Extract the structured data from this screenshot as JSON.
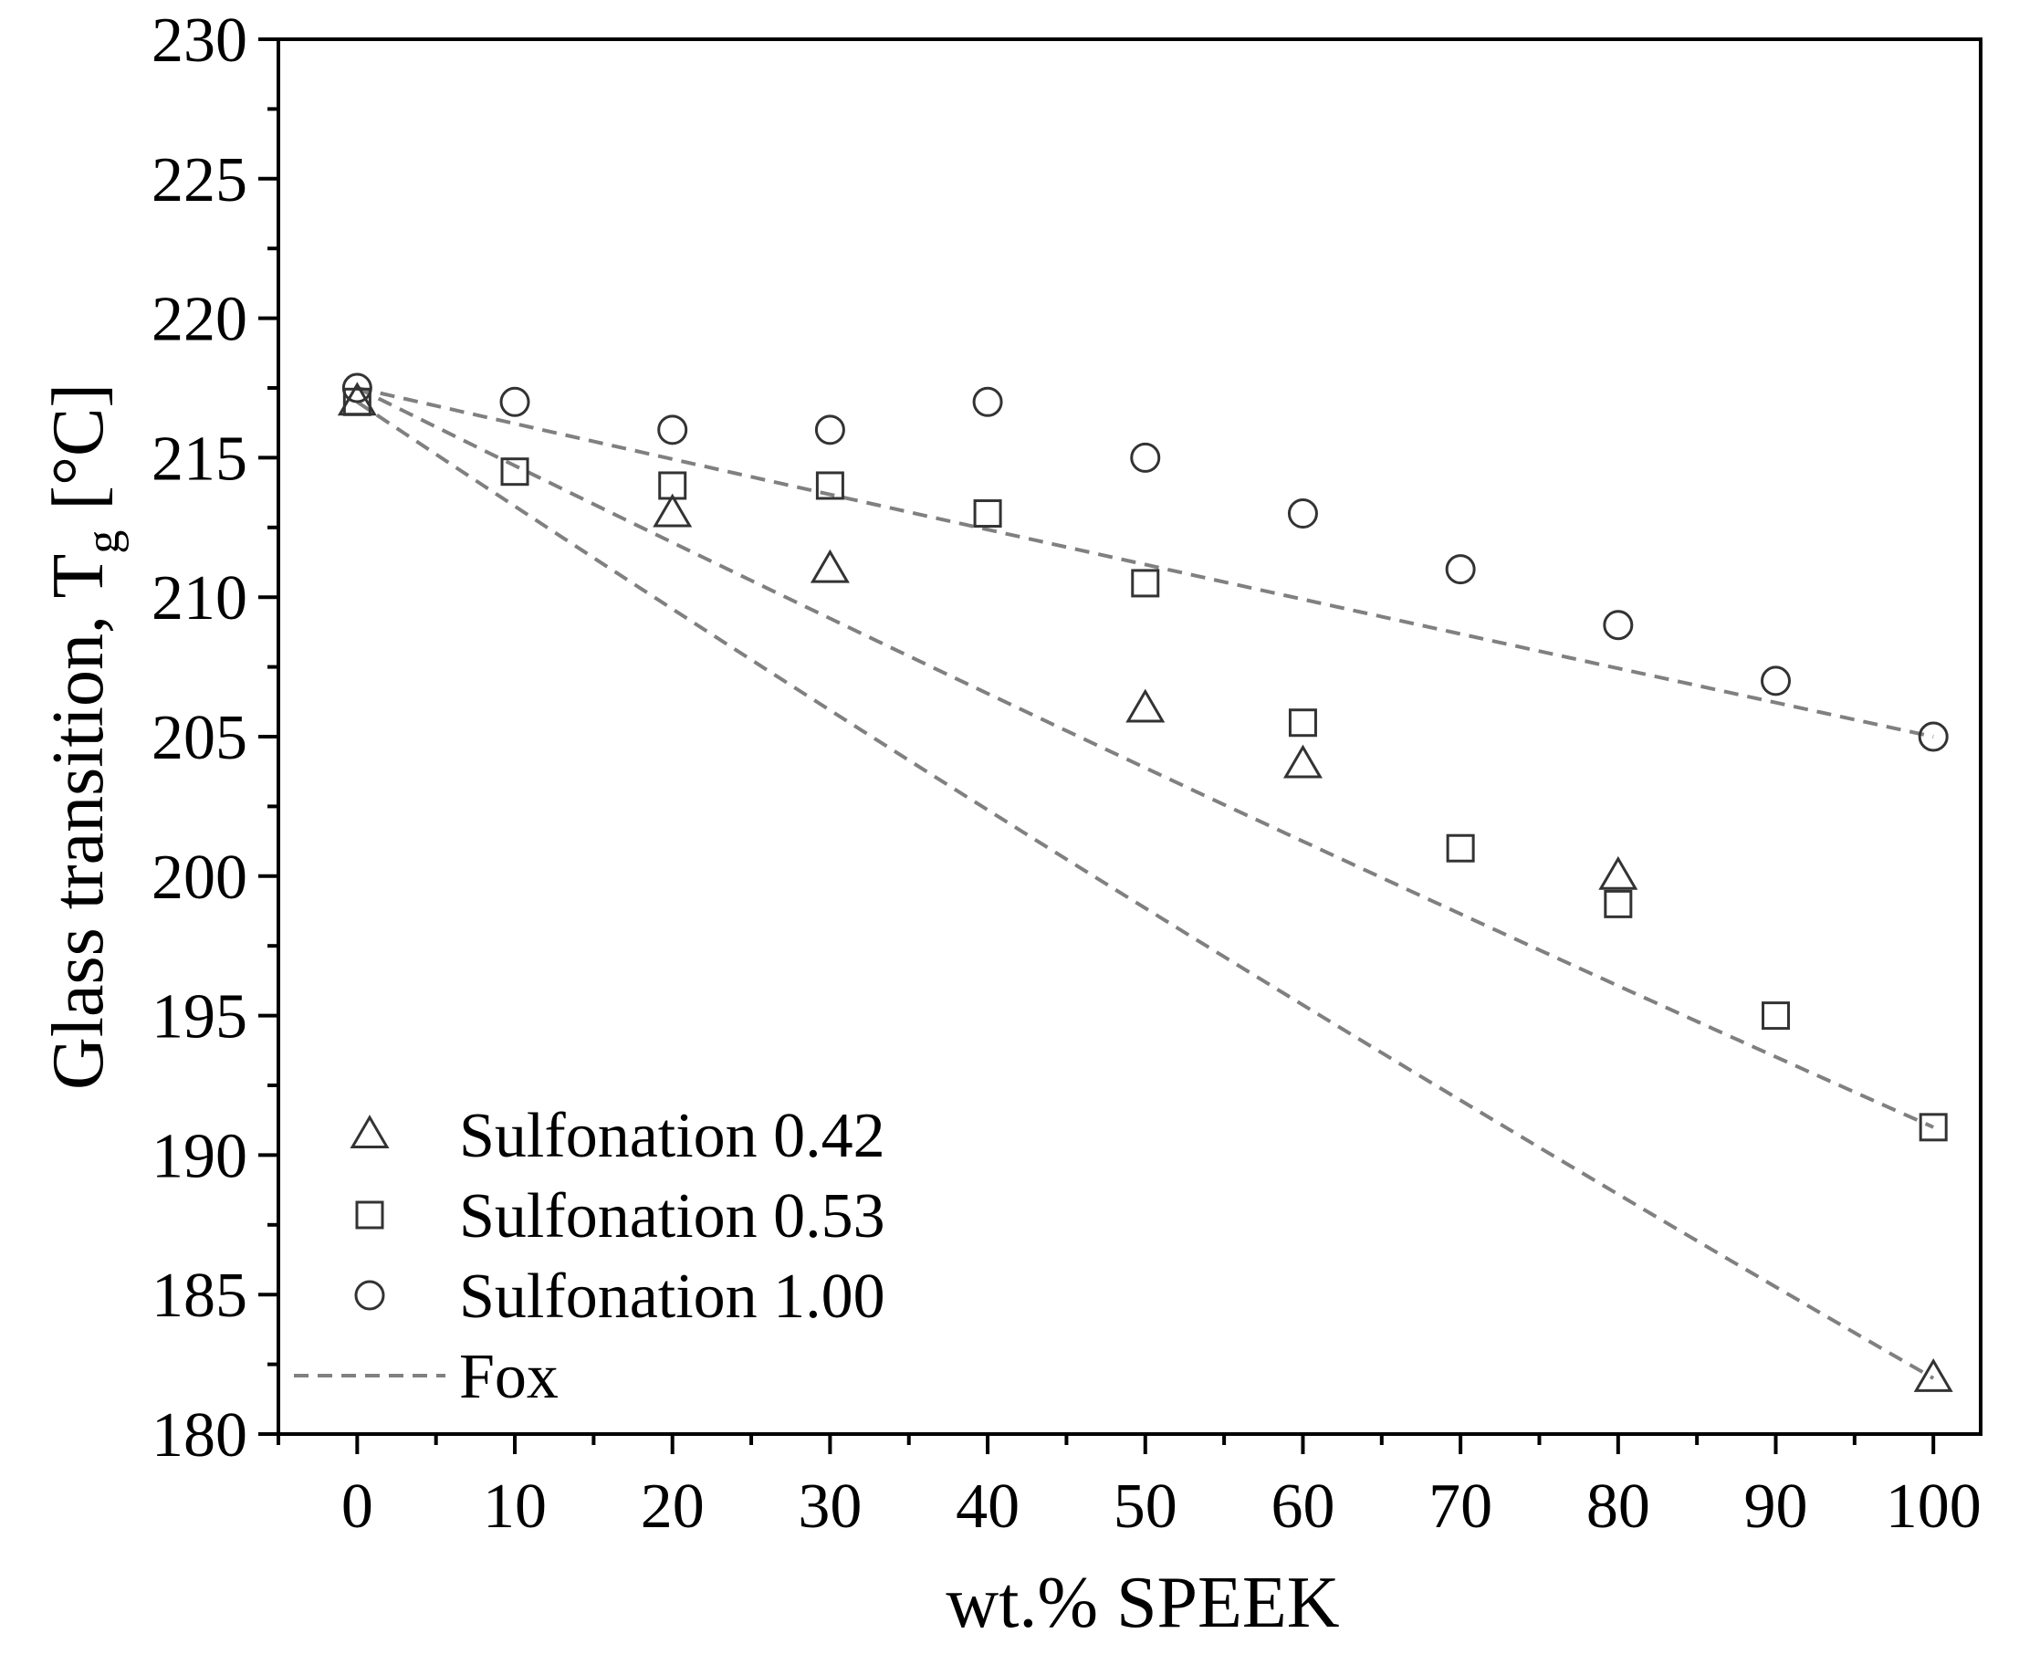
{
  "chart_data": {
    "type": "scatter",
    "title": "",
    "xlabel": "wt.% SPEEK",
    "ylabel_main": "Glass transition, T",
    "ylabel_sub": "g",
    "ylabel_unit": "[°C]",
    "xlim": [
      -5,
      103
    ],
    "ylim": [
      180,
      230
    ],
    "x_ticks": [
      0,
      10,
      20,
      30,
      40,
      50,
      60,
      70,
      80,
      90,
      100
    ],
    "y_ticks": [
      180,
      185,
      190,
      195,
      200,
      205,
      210,
      215,
      220,
      225,
      230
    ],
    "legend_position": "bottom-left",
    "series": [
      {
        "name": "Sulfonation 0.42",
        "marker": "triangle",
        "points": [
          [
            0,
            217
          ],
          [
            20,
            213
          ],
          [
            30,
            211
          ],
          [
            50,
            206
          ],
          [
            60,
            204
          ],
          [
            80,
            200
          ],
          [
            100,
            182
          ]
        ]
      },
      {
        "name": "Sulfonation 0.53",
        "marker": "square",
        "points": [
          [
            0,
            217
          ],
          [
            10,
            214.5
          ],
          [
            20,
            214
          ],
          [
            30,
            214
          ],
          [
            40,
            213
          ],
          [
            50,
            210.5
          ],
          [
            60,
            205.5
          ],
          [
            70,
            201
          ],
          [
            80,
            199
          ],
          [
            90,
            195
          ],
          [
            100,
            191
          ]
        ]
      },
      {
        "name": "Sulfonation 1.00",
        "marker": "circle",
        "points": [
          [
            0,
            217.5
          ],
          [
            10,
            217
          ],
          [
            20,
            216
          ],
          [
            30,
            216
          ],
          [
            40,
            217
          ],
          [
            50,
            215
          ],
          [
            60,
            213
          ],
          [
            70,
            211
          ],
          [
            80,
            209
          ],
          [
            90,
            207
          ],
          [
            100,
            205
          ]
        ]
      }
    ],
    "fox_label": "Fox",
    "fox_lines": [
      {
        "name": "Fox 0.42",
        "tg_start": 217,
        "tg_end": 182
      },
      {
        "name": "Fox 0.53",
        "tg_start": 217.5,
        "tg_end": 191
      },
      {
        "name": "Fox 1.00",
        "tg_start": 217.5,
        "tg_end": 205
      }
    ],
    "colors": {
      "markers": "#333333",
      "fox": "#808080",
      "axes": "#000000"
    }
  }
}
